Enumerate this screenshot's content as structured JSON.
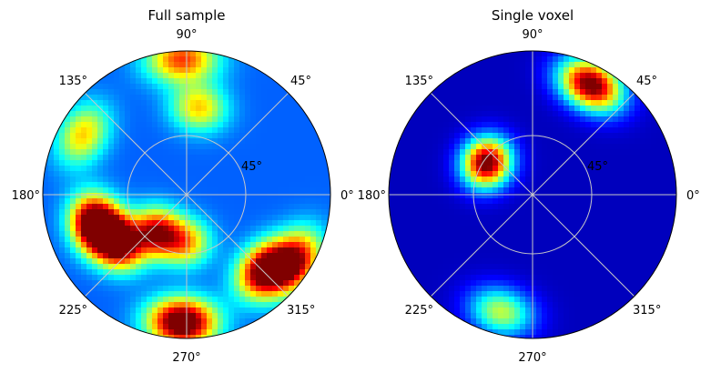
{
  "chart_data": [
    {
      "type": "heatmap",
      "title": "Full sample",
      "projection": "polar",
      "colormap": "jet",
      "angle_ticks": [
        "0°",
        "45°",
        "90°",
        "135°",
        "180°",
        "225°",
        "270°",
        "315°"
      ],
      "radial_tick": "45°",
      "grid": true,
      "hotspots": [
        {
          "az": 198,
          "el": 30,
          "intensity": 1.0
        },
        {
          "az": 215,
          "el": 38,
          "intensity": 0.85
        },
        {
          "az": 232,
          "el": 60,
          "intensity": 0.7
        },
        {
          "az": 268,
          "el": 10,
          "intensity": 0.95
        },
        {
          "az": 316,
          "el": 22,
          "intensity": 0.85
        },
        {
          "az": 328,
          "el": 10,
          "intensity": 0.7
        },
        {
          "az": 92,
          "el": 5,
          "intensity": 0.6
        },
        {
          "az": 82,
          "el": 35,
          "intensity": 0.45
        },
        {
          "az": 150,
          "el": 15,
          "intensity": 0.45
        },
        {
          "az": 270,
          "el": 60,
          "intensity": 0.45
        }
      ]
    },
    {
      "type": "heatmap",
      "title": "Single voxel",
      "projection": "polar",
      "colormap": "jet",
      "angle_ticks": [
        "0°",
        "45°",
        "90°",
        "135°",
        "180°",
        "225°",
        "270°",
        "315°"
      ],
      "radial_tick": "45°",
      "grid": true,
      "hotspots": [
        {
          "az": 62,
          "el": 12,
          "intensity": 1.0
        },
        {
          "az": 145,
          "el": 55,
          "intensity": 1.0
        },
        {
          "az": 255,
          "el": 14,
          "intensity": 0.5
        }
      ]
    }
  ]
}
